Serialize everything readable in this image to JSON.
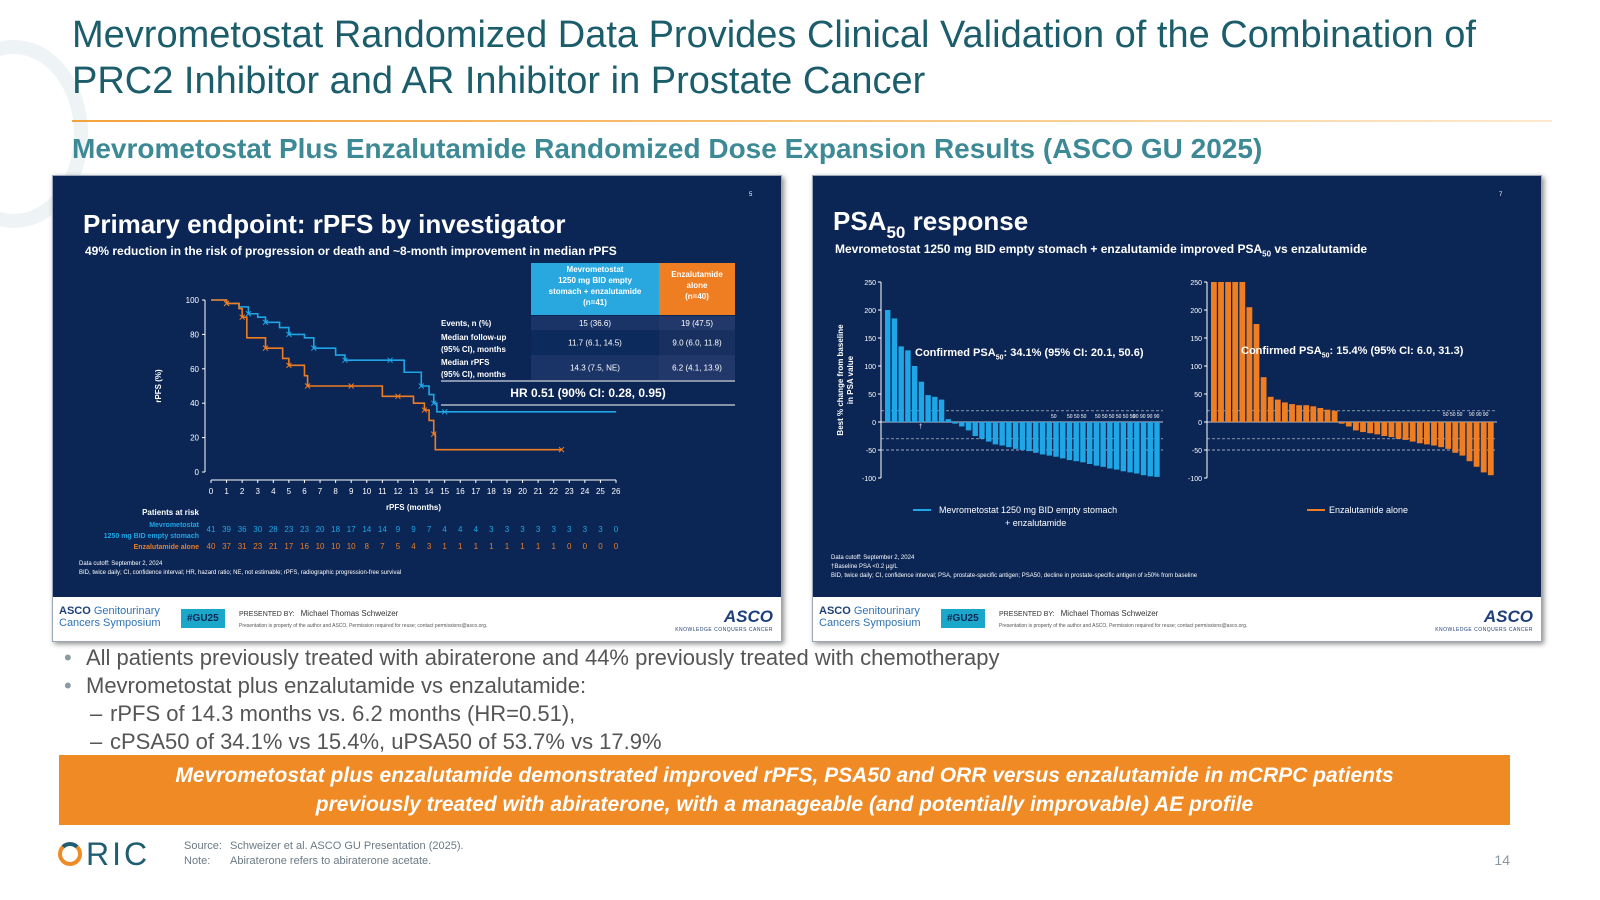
{
  "header": {
    "title": "Mevrometostat Randomized Data Provides Clinical Validation of the Combination of PRC2 Inhibitor and AR Inhibitor in Prostate Cancer",
    "subtitle": "Mevrometostat Plus Enzalutamide Randomized Dose Expansion Results (ASCO GU 2025)"
  },
  "left_slide": {
    "page_no": "5",
    "title": "Primary endpoint: rPFS by investigator",
    "subtitle": "49% reduction in the risk of progression or death and ~8-month improvement in median rPFS",
    "table": {
      "col1_header": [
        "Mevrometostat",
        "1250 mg BID empty",
        "stomach + enzalutamide",
        "(n=41)"
      ],
      "col2_header": [
        "Enzalutamide",
        "alone",
        "(n=40)"
      ],
      "rows": [
        {
          "label": [
            "Events, n (%)"
          ],
          "v1": "15 (36.6)",
          "v2": "19 (47.5)"
        },
        {
          "label": [
            "Median follow-up",
            "(95% CI), months"
          ],
          "v1": "11.7 (6.1, 14.5)",
          "v2": "9.0 (6.0, 11.8)"
        },
        {
          "label": [
            "Median rPFS",
            "(95% CI), months"
          ],
          "v1": "14.3 (7.5, NE)",
          "v2": "6.2 (4.1, 13.9)"
        }
      ],
      "hr": "HR 0.51 (90% CI: 0.28, 0.95)"
    },
    "risk_header": "Patients at risk",
    "risk_label_1": [
      "Mevrometostat",
      "1250 mg BID empty stomach"
    ],
    "risk_label_2": "Enzalutamide alone",
    "risk_1": [
      "41",
      "39",
      "36",
      "30",
      "28",
      "23",
      "23",
      "20",
      "18",
      "17",
      "14",
      "14",
      "9",
      "9",
      "7",
      "4",
      "4",
      "4",
      "3",
      "3",
      "3",
      "3",
      "3",
      "3",
      "3",
      "3",
      "0"
    ],
    "risk_2": [
      "40",
      "37",
      "31",
      "23",
      "21",
      "17",
      "16",
      "10",
      "10",
      "10",
      "8",
      "7",
      "5",
      "4",
      "3",
      "1",
      "1",
      "1",
      "1",
      "1",
      "1",
      "1",
      "1",
      "0",
      "0",
      "0",
      "0"
    ],
    "notes": [
      "Data cutoff: September 2, 2024",
      "BID, twice daily; CI, confidence interval; HR, hazard ratio; NE, not estimable; rPFS, radiographic progression-free survival"
    ]
  },
  "right_slide": {
    "page_no": "7",
    "title_main": "PSA",
    "title_sub": "50",
    "title_tail": " response",
    "subtitle_a": "Mevrometostat 1250 mg BID empty stomach + enzalutamide improved PSA",
    "subtitle_sub": "50",
    "subtitle_b": " vs enzalutamide",
    "ylabel_1": "Best % change from baseline",
    "ylabel_2": "in PSA value",
    "confirm_1_a": "Confirmed PSA",
    "confirm_1_sub": "50",
    "confirm_1_b": ": 34.1% (95% CI: 20.1, 50.6)",
    "confirm_2_a": "Confirmed PSA",
    "confirm_2_sub": "50",
    "confirm_2_b": ": 15.4% (95% CI: 6.0, 31.3)",
    "legend_1": [
      "Mevrometostat 1250 mg BID empty stomach",
      "+ enzalutamide"
    ],
    "legend_2": "Enzalutamide alone",
    "notes": [
      "Data cutoff: September 2, 2024",
      "†Baseline PSA <0.2 µg/L",
      "BID, twice daily; CI, confidence interval; PSA, prostate-specific antigen; PSA50, decline in prostate-specific antigen of ≥50% from baseline"
    ],
    "dagger": "†",
    "marks_1": [
      "50",
      "50 50 50",
      "50 50 50 50 50 50",
      "90 90 90 90"
    ],
    "marks_2": [
      "50 50 50",
      "90 90 90"
    ]
  },
  "slide_footer": {
    "asco_line1": "ASCO",
    "asco_line1b": " Genitourinary",
    "asco_line2": "Cancers Symposium",
    "tag": "#GU25",
    "presented_by": "PRESENTED BY:",
    "presenter": "Michael Thomas Schweizer",
    "note": "Presentation is property of the author and ASCO. Permission required for reuse; contact permissions@asco.org.",
    "asco_big": "ASCO",
    "asco_small": "KNOWLEDGE CONQUERS CANCER"
  },
  "bullets": [
    {
      "level": 1,
      "text": "All patients previously treated with abiraterone and 44% previously treated with chemotherapy"
    },
    {
      "level": 1,
      "text": "Mevrometostat plus enzalutamide vs enzalutamide:"
    },
    {
      "level": 2,
      "text": "rPFS of 14.3 months vs. 6.2 months (HR=0.51),"
    },
    {
      "level": 2,
      "text": "cPSA50 of 34.1% vs 15.4%, uPSA50 of 53.7% vs 17.9%"
    }
  ],
  "banner": {
    "line1": "Mevrometostat plus enzalutamide demonstrated improved rPFS, PSA50 and ORR versus enzalutamide in mCRPC patients",
    "line2": "previously treated with abiraterone, with a manageable (and potentially improvable) AE profile"
  },
  "footer": {
    "logo": "RIC",
    "source_key": "Source:",
    "source": "Schweizer et al. ASCO GU Presentation (2025).",
    "note_key": "Note:",
    "note": "Abiraterone refers to abiraterone acetate.",
    "page": "14"
  },
  "colors": {
    "blue": "#1fa6e6",
    "orange": "#ef7d22",
    "navy": "#0b2554",
    "teal_title": "#1c5d6b"
  },
  "chart_data": [
    {
      "type": "line",
      "title": "Primary endpoint: rPFS by investigator",
      "xlabel": "rPFS (months)",
      "ylabel": "rPFS (%)",
      "xlim": [
        0,
        26
      ],
      "ylim": [
        0,
        100
      ],
      "xticks": [
        0,
        1,
        2,
        3,
        4,
        5,
        6,
        7,
        8,
        9,
        10,
        11,
        12,
        13,
        14,
        15,
        16,
        17,
        18,
        19,
        20,
        21,
        22,
        23,
        24,
        25,
        26
      ],
      "yticks": [
        0,
        20,
        40,
        60,
        80,
        100
      ],
      "series": [
        {
          "name": "Mevrometostat 1250 mg BID empty stomach",
          "x": [
            0,
            1,
            1.8,
            2.4,
            3,
            3.5,
            4.4,
            5,
            6,
            6.6,
            8,
            8.6,
            10,
            11.5,
            12.4,
            13.5,
            14,
            14.3,
            14.5,
            15,
            26
          ],
          "y": [
            100,
            98,
            96,
            92,
            90,
            87,
            84,
            80,
            78,
            72,
            68,
            65,
            65,
            65,
            58,
            50,
            45,
            40,
            35,
            35,
            35
          ]
        },
        {
          "name": "Enzalutamide alone",
          "x": [
            0,
            1,
            1.8,
            2,
            2.3,
            3.5,
            4.6,
            5,
            6,
            6.2,
            7,
            9,
            11,
            12,
            13,
            13.7,
            14,
            14.3,
            14.4,
            22.5
          ],
          "y": [
            100,
            98,
            95,
            90,
            78,
            72,
            66,
            62,
            56,
            50,
            50,
            50,
            44,
            44,
            40,
            36,
            30,
            22,
            13,
            13
          ]
        }
      ]
    },
    {
      "type": "bar",
      "title": "PSA50 response",
      "ylabel": "Best % change from baseline in PSA value",
      "ylim": [
        -100,
        250
      ],
      "yticks": [
        -100,
        -50,
        0,
        50,
        100,
        150,
        200,
        250
      ],
      "series": [
        {
          "name": "Mevrometostat 1250 mg BID empty stomach + enzalutamide",
          "values": [
            200,
            185,
            135,
            128,
            100,
            72,
            48,
            45,
            40,
            5,
            -3,
            -8,
            -15,
            -25,
            -30,
            -35,
            -40,
            -42,
            -45,
            -48,
            -50,
            -52,
            -55,
            -58,
            -60,
            -62,
            -65,
            -68,
            -70,
            -72,
            -75,
            -78,
            -80,
            -83,
            -85,
            -88,
            -90,
            -92,
            -95,
            -97,
            -98
          ]
        },
        {
          "name": "Enzalutamide alone",
          "values": [
            250,
            250,
            250,
            250,
            250,
            205,
            175,
            80,
            45,
            40,
            35,
            32,
            30,
            30,
            28,
            25,
            22,
            20,
            -3,
            -8,
            -15,
            -18,
            -20,
            -22,
            -25,
            -27,
            -30,
            -32,
            -35,
            -38,
            -40,
            -42,
            -45,
            -48,
            -55,
            -60,
            -70,
            -80,
            -90,
            -95
          ]
        }
      ]
    }
  ]
}
